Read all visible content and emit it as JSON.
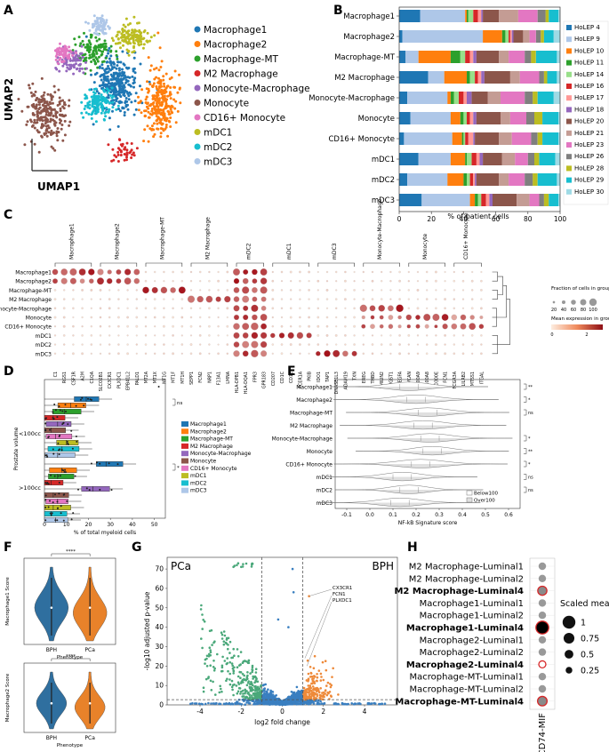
{
  "panels": {
    "A": "A",
    "B": "B",
    "C": "C",
    "D": "D",
    "E": "E",
    "F": "F",
    "G": "G",
    "H": "H"
  },
  "colors": {
    "Macrophage1": "#1f77b4",
    "Macrophage2": "#ff7f0e",
    "Macrophage-MT": "#2ca02c",
    "M2 Macrophage": "#d62728",
    "Monocyte-Macrophage": "#9467bd",
    "Monocyte": "#8c564b",
    "CD16+ Monocyte": "#e377c2",
    "mDC1": "#bcbd22",
    "mDC2": "#17becf",
    "mDC3": "#aec7e8"
  },
  "celltypes": [
    "Macrophage1",
    "Macrophage2",
    "Macrophage-MT",
    "M2 Macrophage",
    "Monocyte-Macrophage",
    "Monocyte",
    "CD16+ Monocyte",
    "mDC1",
    "mDC2",
    "mDC3"
  ],
  "panelA": {
    "xlabel": "UMAP1",
    "ylabel": "UMAP2"
  },
  "panelB": {
    "xlabel": "% of patient cells",
    "ticks": [
      "0",
      "20",
      "40",
      "60",
      "80",
      "100"
    ],
    "patients": [
      "HoLEP 4",
      "HoLEP 9",
      "HoLEP 10",
      "HoLEP 11",
      "HoLEP 14",
      "HoLEP 16",
      "HoLEP 17",
      "HoLEP 18",
      "HoLEP 20",
      "HoLEP 21",
      "HoLEP 23",
      "HoLEP 26",
      "HoLEP 28",
      "HoLEP 29",
      "HoLEP 30"
    ],
    "patient_colors": [
      "#1f77b4",
      "#aec7e8",
      "#ff7f0e",
      "#2ca02c",
      "#98df8a",
      "#d62728",
      "#ff9896",
      "#9467bd",
      "#8c564b",
      "#c49c94",
      "#e377c2",
      "#7f7f7f",
      "#bcbd22",
      "#17becf",
      "#9edae5"
    ]
  },
  "chart_data": [
    {
      "type": "bar",
      "panel": "B",
      "categories": [
        "Macrophage1",
        "Macrophage2",
        "Macrophage-MT",
        "M2 Macrophage",
        "Monocyte-Macrophage",
        "Monocyte",
        "CD16+ Monocyte",
        "mDC1",
        "mDC2",
        "mDC3"
      ],
      "series": [
        {
          "name": "HoLEP 4",
          "values": [
            13,
            2,
            4,
            18,
            5,
            7,
            3,
            12,
            5,
            14
          ]
        },
        {
          "name": "HoLEP 9",
          "values": [
            28,
            50,
            8,
            10,
            25,
            25,
            30,
            20,
            25,
            30
          ]
        },
        {
          "name": "HoLEP 10",
          "values": [
            1,
            12,
            20,
            14,
            2,
            6,
            6,
            9,
            10,
            3
          ]
        },
        {
          "name": "HoLEP 11",
          "values": [
            1,
            2,
            6,
            2,
            2,
            2,
            1,
            1,
            2,
            2
          ]
        },
        {
          "name": "HoLEP 14",
          "values": [
            3,
            2,
            3,
            3,
            3,
            2,
            1,
            3,
            2,
            2
          ]
        },
        {
          "name": "HoLEP 16",
          "values": [
            3,
            1,
            3,
            2,
            3,
            2,
            2,
            3,
            2,
            3
          ]
        },
        {
          "name": "HoLEP 17",
          "values": [
            2,
            1,
            2,
            2,
            2,
            2,
            3,
            2,
            1,
            2
          ]
        },
        {
          "name": "HoLEP 18",
          "values": [
            1,
            1,
            2,
            2,
            3,
            2,
            1,
            2,
            1,
            2
          ]
        },
        {
          "name": "HoLEP 20",
          "values": [
            10,
            6,
            14,
            16,
            10,
            15,
            15,
            12,
            14,
            15
          ]
        },
        {
          "name": "HoLEP 21",
          "values": [
            12,
            4,
            6,
            6,
            8,
            6,
            8,
            8,
            6,
            8
          ]
        },
        {
          "name": "HoLEP 23",
          "values": [
            12,
            4,
            10,
            12,
            15,
            10,
            12,
            8,
            10,
            6
          ]
        },
        {
          "name": "HoLEP 26",
          "values": [
            5,
            3,
            4,
            3,
            5,
            5,
            4,
            4,
            5,
            3
          ]
        },
        {
          "name": "HoLEP 28",
          "values": [
            2,
            2,
            3,
            2,
            3,
            5,
            3,
            3,
            3,
            3
          ]
        },
        {
          "name": "HoLEP 29",
          "values": [
            6,
            6,
            13,
            6,
            10,
            10,
            10,
            10,
            12,
            6
          ]
        },
        {
          "name": "HoLEP 30",
          "values": [
            1,
            4,
            2,
            2,
            4,
            1,
            1,
            3,
            2,
            1
          ]
        }
      ],
      "xlabel": "% of patient cells",
      "xlim": [
        0,
        100
      ]
    },
    {
      "type": "scatter",
      "panel": "C",
      "genes": [
        "C1",
        "RGS1",
        "CSF1R",
        "A2M",
        "C1QA",
        "SLCO2B1",
        "CX3CR1",
        "PLXDC1",
        "EPB41L2",
        "PALD1",
        "MT2A",
        "MT1X",
        "MT1G",
        "MT1F",
        "MT1H",
        "SEPP1",
        "FCN2",
        "NRP1",
        "F13A1",
        "LMNA",
        "HLA-DPB1",
        "HLA-DQA1",
        "FPR3",
        "GPR183",
        "CD207",
        "CD1C",
        "CD1E",
        "FCER1A",
        "PKIB",
        "IDO1",
        "TAP1",
        "DNASE1L3",
        "ADAM19",
        "TXN",
        "EREG",
        "THBD",
        "EMILIN2",
        "MGST1",
        "VEGFA",
        "VCAN",
        "S100A9",
        "S100A8",
        "CD300E",
        "FCN1",
        "FCGR3A",
        "LILRB2",
        "MTSS1",
        "ITGAL"
      ],
      "groups": [
        {
          "name": "Macrophage1",
          "genes": 5
        },
        {
          "name": "Macrophage2",
          "genes": 5
        },
        {
          "name": "Macrophage-MT",
          "genes": 5
        },
        {
          "name": "M2 Macrophage",
          "genes": 5
        },
        {
          "name": "mDC2",
          "genes": 4
        },
        {
          "name": "mDC1",
          "genes": 5
        },
        {
          "name": "mDC3",
          "genes": 5
        },
        {
          "name": "Monocyte-Macrophage",
          "genes": 5
        },
        {
          "name": "Monocyte",
          "genes": 5
        },
        {
          "name": "CD16+ Monocyte",
          "genes": 4
        }
      ],
      "legend": {
        "fraction_title": "Fraction of cells in group (%)",
        "fraction_ticks": [
          "20",
          "40",
          "60",
          "80",
          "100"
        ],
        "expr_title": "Mean expression in group",
        "expr_ticks": [
          "0",
          "2"
        ]
      }
    },
    {
      "type": "scatter",
      "panel": "D",
      "ylabel": "Prostate volume",
      "xlabel": "% of total myeloid cells",
      "groups": [
        "<100cc",
        ">100cc"
      ],
      "ticks": [
        "0",
        "10",
        "20",
        "30",
        "40",
        "50"
      ],
      "sig": [
        "ns",
        "*"
      ]
    },
    {
      "type": "area",
      "panel": "E",
      "xlabel": "NF-kB Signature score",
      "ticks": [
        "-0.1",
        "0.0",
        "0.1",
        "0.2",
        "0.3",
        "0.4",
        "0.5",
        "0.6"
      ],
      "legend": [
        "Below100",
        "Over100"
      ],
      "sig": [
        "**",
        "*",
        "ns",
        "",
        "*",
        "**",
        "*",
        "ns",
        "ns",
        ""
      ]
    },
    {
      "type": "area",
      "panel": "F",
      "plots": [
        {
          "ylabel": "Macrophage1 Score",
          "xlabel": "Phenotype",
          "categories": [
            "BPH",
            "PCa"
          ],
          "sig": "****"
        },
        {
          "ylabel": "Macrophage2 Score",
          "xlabel": "Phenotype",
          "categories": [
            "BPH",
            "PCa"
          ],
          "sig": "****"
        }
      ]
    },
    {
      "type": "scatter",
      "panel": "G",
      "xlabel": "log2 fold change",
      "ylabel": "-log10 adjusted p-value",
      "xticks": [
        "-4",
        "-2",
        "0",
        "2",
        "4"
      ],
      "yticks": [
        "0",
        "10",
        "20",
        "30",
        "40",
        "50",
        "60",
        "70"
      ],
      "left_label": "PCa",
      "right_label": "BPH",
      "annotated_genes": [
        "CX3CR1",
        "FCN1",
        "PLXDC1"
      ]
    },
    {
      "type": "scatter",
      "panel": "H",
      "rows": [
        {
          "label": "M2 Macrophage-Luminal1",
          "bold": false,
          "size": 0.35,
          "color": "#999999",
          "ring": false
        },
        {
          "label": "M2 Macrophage-Luminal2",
          "bold": false,
          "size": 0.35,
          "color": "#999999",
          "ring": false
        },
        {
          "label": "M2 Macrophage-Luminal4",
          "bold": true,
          "size": 0.55,
          "color": "#8a8a8a",
          "ring": true
        },
        {
          "label": "Macrophage1-Luminal1",
          "bold": false,
          "size": 0.35,
          "color": "#999999",
          "ring": false
        },
        {
          "label": "Macrophage1-Luminal2",
          "bold": false,
          "size": 0.35,
          "color": "#999999",
          "ring": false
        },
        {
          "label": "Macrophage1-Luminal4",
          "bold": true,
          "size": 1.0,
          "color": "#000000",
          "ring": true
        },
        {
          "label": "Macrophage2-Luminal1",
          "bold": false,
          "size": 0.35,
          "color": "#999999",
          "ring": false
        },
        {
          "label": "Macrophage2-Luminal2",
          "bold": false,
          "size": 0.35,
          "color": "#999999",
          "ring": false
        },
        {
          "label": "Macrophage2-Luminal4",
          "bold": true,
          "size": 0.3,
          "color": "#ffffff",
          "ring": true
        },
        {
          "label": "Macrophage-MT-Luminal1",
          "bold": false,
          "size": 0.35,
          "color": "#999999",
          "ring": false
        },
        {
          "label": "Macrophage-MT-Luminal2",
          "bold": false,
          "size": 0.35,
          "color": "#999999",
          "ring": false
        },
        {
          "label": "Macrophage-MT-Luminal4",
          "bold": true,
          "size": 0.6,
          "color": "#8a8a8a",
          "ring": true
        }
      ],
      "xlabel": "CD74-MIF",
      "legend_title": "Scaled means",
      "legend": [
        {
          "label": "1",
          "size": 1.0
        },
        {
          "label": "0.75",
          "size": 0.75
        },
        {
          "label": "0.5",
          "size": 0.5
        },
        {
          "label": "0.25",
          "size": 0.25
        }
      ]
    }
  ]
}
